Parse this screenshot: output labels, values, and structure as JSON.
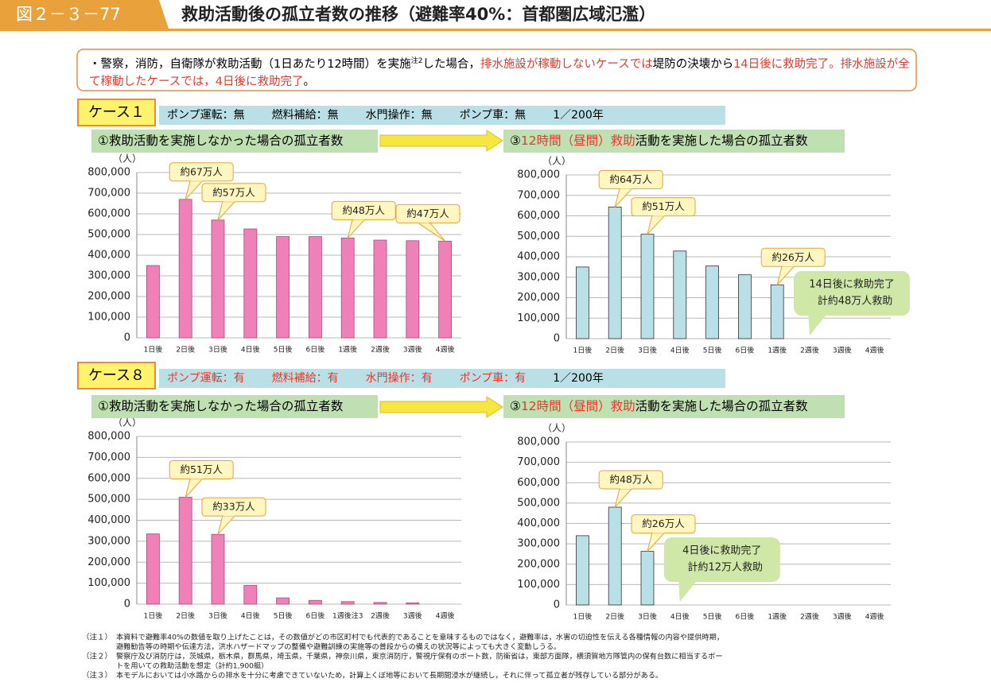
{
  "header": {
    "figure": "図２－３－77",
    "title": "救助活動後の孤立者数の推移（避難率40%：首都圏広域氾濫）"
  },
  "summary": [
    {
      "text": "・警察，消防，自衛隊が救助活動（1日あたり12時間）を実施",
      "red": false
    },
    {
      "text": "注2",
      "red": false,
      "sup": true
    },
    {
      "text": "した場合，",
      "red": false
    },
    {
      "text": "排水施設が稼動しないケースでは",
      "red": true
    },
    {
      "text": "堤防の決壊から",
      "red": false
    },
    {
      "text": "14日後に救助完了。排水施設が全て稼動したケースでは，4日後に救助完了",
      "red": true
    },
    {
      "text": "。",
      "red": false
    }
  ],
  "cases": [
    {
      "label": "ケース１",
      "conditions": [
        {
          "text": "ポンプ運転：無",
          "red": false
        },
        {
          "text": "燃料補給：無",
          "red": false
        },
        {
          "text": "水門操作：無",
          "red": false
        },
        {
          "text": "ポンプ車：無",
          "red": false
        },
        {
          "text": "1／200年",
          "red": false
        }
      ]
    },
    {
      "label": "ケース８",
      "conditions": [
        {
          "text": "ポンプ運転：有",
          "red": true
        },
        {
          "text": "燃料補給：有",
          "red": true
        },
        {
          "text": "水門操作：有",
          "red": true
        },
        {
          "text": "ポンプ車：有",
          "red": true
        },
        {
          "text": "1／200年",
          "red": false
        }
      ]
    }
  ],
  "chart_data": [
    {
      "type": "bar",
      "title": [
        {
          "text": "①救助活動を実施しなかった場合の孤立者数",
          "red": false
        }
      ],
      "y_unit": "（人）",
      "color": "#f080b8",
      "edge": "#a84a78",
      "categories": [
        "1日後",
        "2日後",
        "3日後",
        "4日後",
        "5日後",
        "6日後",
        "1週後",
        "2週後",
        "3週後",
        "4週後"
      ],
      "values": [
        350000,
        670000,
        570000,
        527000,
        490000,
        490000,
        483000,
        473000,
        470000,
        468000
      ],
      "value_labels": [
        null,
        "約67万人",
        "約57万人",
        null,
        null,
        null,
        "約48万人",
        null,
        null,
        "約47万人"
      ],
      "ylim": [
        0,
        800000
      ],
      "yticks": [
        0,
        {
          "value": 100000,
          "label": "100,000"
        },
        {
          "value": 200000,
          "label": "200,000"
        },
        {
          "value": 300000,
          "label": "300,000"
        },
        {
          "value": 400000,
          "label": "400,000"
        },
        {
          "value": 500000,
          "label": "500,000"
        },
        {
          "value": 600000,
          "label": "600,000"
        },
        {
          "value": 700000,
          "label": "700,000"
        },
        {
          "value": 800000,
          "label": "800,000"
        }
      ],
      "grid": true
    },
    {
      "type": "bar",
      "title": [
        {
          "text": "③",
          "red": false
        },
        {
          "text": "12時間（昼間）救助",
          "red": true
        },
        {
          "text": "活動を実施した場合の孤立者数",
          "red": false
        }
      ],
      "y_unit": "（人）",
      "color": "#b8e0e6",
      "edge": "#333333",
      "categories": [
        "1日後",
        "2日後",
        "3日後",
        "4日後",
        "5日後",
        "6日後",
        "1週後",
        "2週後",
        "3週後",
        "4週後"
      ],
      "values": [
        350000,
        643000,
        510000,
        428000,
        355000,
        312000,
        263000,
        0,
        0,
        0
      ],
      "value_labels": [
        null,
        "約64万人",
        "約51万人",
        null,
        null,
        null,
        "約26万人",
        null,
        null,
        null
      ],
      "annotation": [
        "14日後に救助完了",
        "計約48万人救助"
      ],
      "ylim": [
        0,
        800000
      ],
      "yticks": [
        0,
        {
          "value": 100000,
          "label": "100,000"
        },
        {
          "value": 200000,
          "label": "200,000"
        },
        {
          "value": 300000,
          "label": "300,000"
        },
        {
          "value": 400000,
          "label": "400,000"
        },
        {
          "value": 500000,
          "label": "500,000"
        },
        {
          "value": 600000,
          "label": "600,000"
        },
        {
          "value": 700000,
          "label": "700,000"
        },
        {
          "value": 800000,
          "label": "800,000"
        }
      ],
      "grid": true
    },
    {
      "type": "bar",
      "title": [
        {
          "text": "①救助活動を実施しなかった場合の孤立者数",
          "red": false
        }
      ],
      "y_unit": "（人）",
      "color": "#f080b8",
      "edge": "#a84a78",
      "categories": [
        "1日後",
        "2日後",
        "3日後",
        "4日後",
        "5日後",
        "6日後",
        "1週後注3",
        "2週後",
        "3週後",
        "4週後"
      ],
      "values": [
        335000,
        510000,
        333000,
        90000,
        30000,
        18000,
        12000,
        8000,
        6000,
        0
      ],
      "value_labels": [
        null,
        "約51万人",
        "約33万人",
        null,
        null,
        null,
        null,
        null,
        null,
        null
      ],
      "ylim": [
        0,
        800000
      ],
      "yticks": [
        0,
        {
          "value": 100000,
          "label": "100,000"
        },
        {
          "value": 200000,
          "label": "200,000"
        },
        {
          "value": 300000,
          "label": "300,000"
        },
        {
          "value": 400000,
          "label": "400,000"
        },
        {
          "value": 500000,
          "label": "500,000"
        },
        {
          "value": 600000,
          "label": "600,000"
        },
        {
          "value": 700000,
          "label": "700,000"
        },
        {
          "value": 800000,
          "label": "800,000"
        }
      ],
      "grid": true
    },
    {
      "type": "bar",
      "title": [
        {
          "text": "③",
          "red": false
        },
        {
          "text": "12時間（昼間）救助",
          "red": true
        },
        {
          "text": "活動を実施した場合の孤立者数",
          "red": false
        }
      ],
      "y_unit": "（人）",
      "color": "#b8e0e6",
      "edge": "#333333",
      "categories": [
        "1日後",
        "2日後",
        "3日後",
        "4日後",
        "5日後",
        "6日後",
        "1週後",
        "2週後",
        "3週後",
        "4週後"
      ],
      "values": [
        340000,
        480000,
        263000,
        0,
        0,
        0,
        0,
        0,
        0,
        0
      ],
      "value_labels": [
        null,
        "約48万人",
        "約26万人",
        null,
        null,
        null,
        null,
        null,
        null,
        null
      ],
      "annotation": [
        "4日後に救助完了",
        "計約12万人救助"
      ],
      "ylim": [
        0,
        800000
      ],
      "yticks": [
        0,
        {
          "value": 100000,
          "label": "100,000"
        },
        {
          "value": 200000,
          "label": "200,000"
        },
        {
          "value": 300000,
          "label": "300,000"
        },
        {
          "value": 400000,
          "label": "400,000"
        },
        {
          "value": 500000,
          "label": "500,000"
        },
        {
          "value": 600000,
          "label": "600,000"
        },
        {
          "value": 700000,
          "label": "700,000"
        },
        {
          "value": 800000,
          "label": "800,000"
        }
      ],
      "grid": true
    }
  ],
  "notes": [
    {
      "label": "（注１）",
      "lines": [
        "本資料で避難率40%の数値を取り上げたことは，その数値がどの市区町村でも代表的であることを意味するものではなく，避難率は，水害の切迫性を伝える各種情報の内容や提供時期，",
        "避難勧告等の時期や伝達方法，洪水ハザードマップの整備や避難訓練の実施等の普段からの備えの状況等によっても大きく変動しうる。"
      ]
    },
    {
      "label": "（注２）",
      "lines": [
        "警察庁及び消防庁は，茨城県，栃木県，群馬県，埼玉県，千葉県，神奈川県，東京消防庁，警視庁保有のボート数，防衛省は，東部方面隊，横須賀地方隊管内の保有台数に相当するボー",
        "トを用いての救助活動を想定（計約1,900艇）"
      ]
    },
    {
      "label": "（注３）",
      "lines": [
        "本モデルにおいては小水路からの排水を十分に考慮できていないため，計算上くぼ地等において長期間浸水が継続し，それに伴って孤立者が残存している部分がある。"
      ]
    }
  ]
}
